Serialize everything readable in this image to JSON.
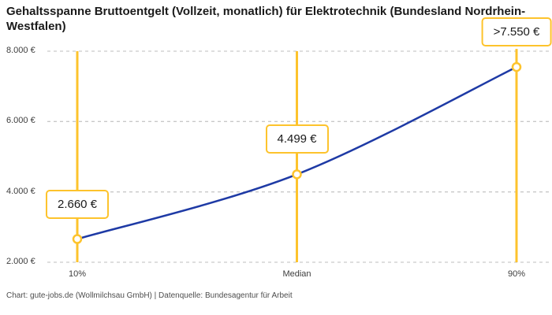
{
  "chart_data": {
    "type": "line",
    "title": "Gehaltsspanne Bruttoentgelt (Vollzeit, monatlich) für Elektrotechnik (Bundesland Nordrhein-Westfalen)",
    "categories": [
      "10%",
      "Median",
      "90%"
    ],
    "values": [
      2660,
      4499,
      7550
    ],
    "point_labels": [
      "2.660 €",
      "4.499 €",
      ">7.550 €"
    ],
    "ylim": [
      2000,
      8000
    ],
    "yticks": [
      2000,
      4000,
      6000,
      8000
    ],
    "ytick_labels": [
      "2.000 €",
      "4.000 €",
      "6.000 €",
      "8.000 €"
    ],
    "xlabel": "",
    "ylabel": "",
    "grid": "horizontal-dashed",
    "legend": "none",
    "colors": {
      "line": "#1e3aa5",
      "marker": "#fdc32c",
      "grid": "#c9c9c9",
      "title_text": "#1a1a1a",
      "tick_text": "#3d3d3d",
      "background": "#ffffff"
    }
  },
  "footer": {
    "text": "Chart: gute-jobs.de (Wollmilchsau GmbH) | Datenquelle: Bundesagentur für Arbeit"
  }
}
